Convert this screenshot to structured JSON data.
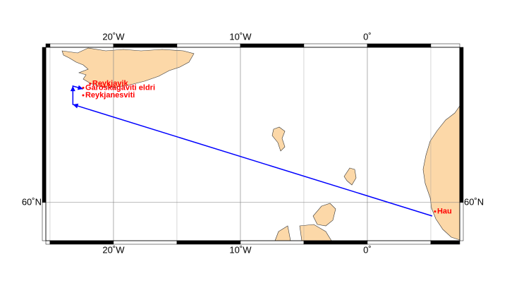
{
  "map": {
    "lonlim": [
      -25.33,
      7.28
    ],
    "latlim": [
      58.45,
      65.6
    ],
    "xticks": [
      {
        "value": -20,
        "label": "20˚W"
      },
      {
        "value": -10,
        "label": "10˚W"
      },
      {
        "value": 0,
        "label": "0˚"
      }
    ],
    "yticks": [
      {
        "value": 60,
        "label": "60˚N"
      }
    ],
    "grid": true,
    "route_color": "#0000ff",
    "station_color": "#ff0000",
    "route": {
      "lon": [
        5.11,
        -23.2,
        -23.2,
        -22.4
      ],
      "lat": [
        59.46,
        63.66,
        64.3,
        64.2
      ]
    },
    "stations": [
      {
        "name": "Reykjavik",
        "lon": -21.67,
        "lat": 64.38
      },
      {
        "name": "Garðskagaviti eldri",
        "lon": -22.22,
        "lat": 64.24
      },
      {
        "name": "Reykjanesviti",
        "lon": -22.22,
        "lat": 63.98
      },
      {
        "name": "Hau",
        "lon": 5.5,
        "lat": 59.64
      }
    ]
  }
}
